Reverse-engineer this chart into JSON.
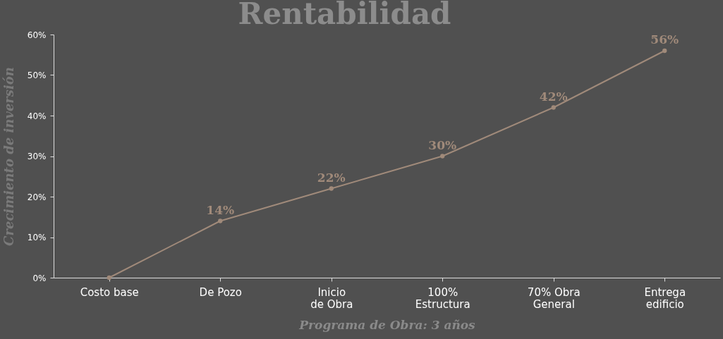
{
  "chart_data": {
    "type": "line",
    "title": "Rentabilidad",
    "xlabel": "Programa de Obra: 3 años",
    "ylabel": "Crecimiento de inversión",
    "categories": [
      "Costo base",
      "De Pozo",
      "Inicio\nde Obra",
      "100%\nEstructura",
      "70% Obra\nGeneral",
      "Entrega\nedificio"
    ],
    "series": [
      {
        "color": "#a08a7a",
        "values": [
          0,
          14,
          22,
          30,
          42,
          56
        ],
        "value_labels": [
          null,
          "14%",
          "22%",
          "30%",
          "42%",
          "56%"
        ]
      }
    ],
    "ylim": [
      0,
      60
    ],
    "yticks": [
      {
        "value": 0,
        "label": "0%"
      },
      {
        "value": 10,
        "label": "10%"
      },
      {
        "value": 20,
        "label": "20%"
      },
      {
        "value": 30,
        "label": "30%"
      },
      {
        "value": 40,
        "label": "40%"
      },
      {
        "value": 50,
        "label": "50%"
      },
      {
        "value": 60,
        "label": "60%"
      }
    ],
    "grid": false,
    "legend": false,
    "marker": "circle",
    "line_style": "solid"
  }
}
